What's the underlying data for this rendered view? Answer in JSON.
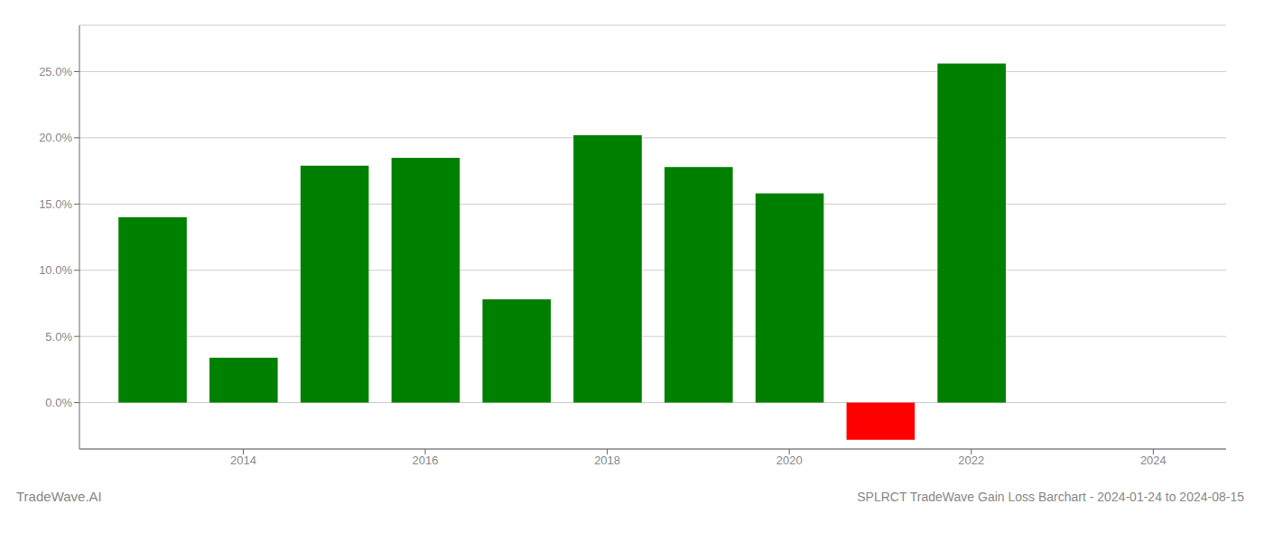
{
  "chart_data": {
    "type": "bar",
    "title": "SPLRCT TradeWave Gain Loss Barchart - 2024-01-24 to 2024-08-15",
    "annotations": [
      "TradeWave.AI"
    ],
    "x": [
      2013,
      2014,
      2015,
      2016,
      2017,
      2018,
      2019,
      2020,
      2021,
      2022,
      2023
    ],
    "values": [
      14.0,
      3.4,
      17.9,
      18.5,
      7.8,
      20.2,
      17.8,
      15.8,
      -2.8,
      25.6,
      0.0
    ],
    "colors": [
      "#008000",
      "#008000",
      "#008000",
      "#008000",
      "#008000",
      "#008000",
      "#008000",
      "#008000",
      "#ff0000",
      "#008000",
      "#ffffff"
    ],
    "xlim": [
      2012.2,
      2024.8
    ],
    "xticks": [
      2014,
      2016,
      2018,
      2020,
      2022,
      2024
    ],
    "ylim": [
      -3.5,
      28.5
    ],
    "yticks": [
      {
        "value": 0.0,
        "label": "0.0%"
      },
      {
        "value": 5.0,
        "label": "5.0%"
      },
      {
        "value": 10.0,
        "label": "10.0%"
      },
      {
        "value": 15.0,
        "label": "15.0%"
      },
      {
        "value": 20.0,
        "label": "20.0%"
      },
      {
        "value": 25.0,
        "label": "25.0%"
      }
    ],
    "grid": true
  }
}
